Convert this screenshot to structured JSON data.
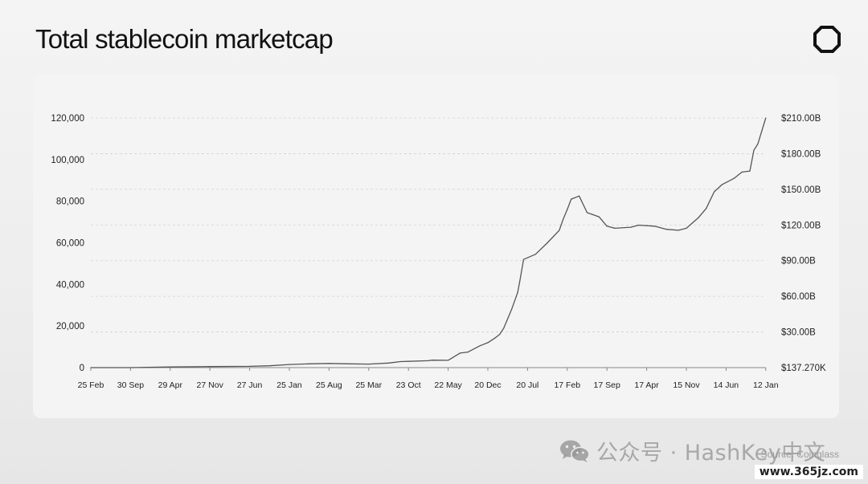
{
  "header": {
    "title": "Total stablecoin marketcap"
  },
  "footer": {
    "source": "Source: Coinglass",
    "watermark": "公众号 · HashKey中文",
    "site": "www.365jz.com"
  },
  "colors": {
    "line": "#555555",
    "grid": "#d2d2d2",
    "axis": "#888888",
    "card": "#f4f4f4"
  },
  "chart_data": {
    "type": "line",
    "title": "Total stablecoin marketcap",
    "xlabel": "",
    "ylabel": "",
    "grid": "horizontal dashed",
    "legend": "none",
    "x_ticks": [
      "25 Feb",
      "30 Sep",
      "29 Apr",
      "27 Nov",
      "27 Jun",
      "25 Jan",
      "25 Aug",
      "25 Mar",
      "23 Oct",
      "22 May",
      "20 Dec",
      "20 Jul",
      "17 Feb",
      "17 Sep",
      "17 Apr",
      "15 Nov",
      "14 Jun",
      "12 Jan"
    ],
    "y_left": {
      "ticks": [
        "0",
        "20,000",
        "40,000",
        "60,000",
        "80,000",
        "100,000",
        "120,000"
      ],
      "values": [
        0,
        20000,
        40000,
        60000,
        80000,
        100000,
        120000
      ],
      "range": [
        0,
        120000
      ]
    },
    "y_right": {
      "ticks": [
        "$137.270K",
        "$30.00B",
        "$60.00B",
        "$90.00B",
        "$120.00B",
        "$150.00B",
        "$180.00B",
        "$210.00B"
      ]
    },
    "series": [
      {
        "x_tick_index": [
          0,
          1,
          2,
          3,
          4,
          4.5,
          5,
          5.5,
          6,
          6.5,
          7,
          7.5,
          7.8,
          8,
          8.5,
          8.6,
          9,
          9.3,
          9.5,
          9.8,
          10,
          10.2,
          10.3,
          10.4,
          10.6,
          10.75,
          10.8,
          10.9,
          11.2,
          11.5,
          11.8,
          11.9,
          12,
          12.1,
          12.3,
          12.5,
          12.8,
          13,
          13.2,
          13.6,
          13.8,
          14.2,
          14.5,
          14.8,
          15,
          15.3,
          15.5,
          15.7,
          15.9,
          16.2,
          16.4,
          16.6,
          16.7,
          16.8,
          17
        ],
        "values": [
          0,
          0,
          300,
          500,
          600,
          900,
          1500,
          1800,
          2000,
          1800,
          1700,
          2200,
          2900,
          3000,
          3300,
          3600,
          3500,
          7000,
          7500,
          10500,
          12000,
          14500,
          16000,
          19000,
          28000,
          36000,
          41000,
          52000,
          54500,
          60000,
          66000,
          71500,
          76000,
          81000,
          82500,
          74500,
          72500,
          68000,
          67000,
          67500,
          68500,
          68000,
          66500,
          66000,
          67000,
          72000,
          76500,
          84500,
          88000,
          91000,
          94000,
          94500,
          104500,
          107500,
          120000
        ]
      }
    ]
  }
}
